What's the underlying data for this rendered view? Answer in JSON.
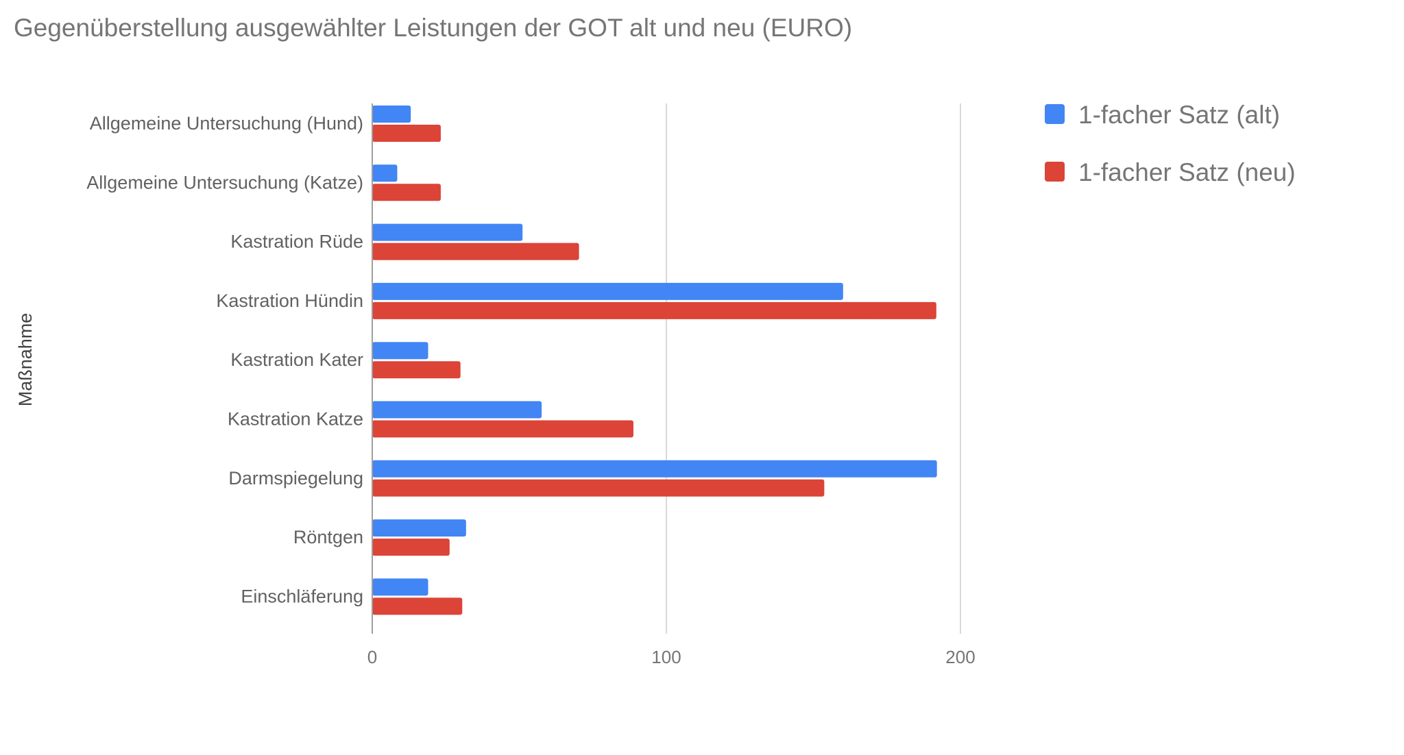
{
  "chart_data": {
    "type": "bar",
    "orientation": "horizontal",
    "title": "Gegenüberstellung ausgewählter Leistungen der GOT alt und neu (EURO)",
    "xlabel": "",
    "ylabel": "Maßnahme",
    "xlim": [
      0,
      200
    ],
    "xticks": [
      "0",
      "100",
      "200"
    ],
    "grid": true,
    "legend": "right",
    "categories": [
      "Allgemeine Untersuchung (Hund)",
      "Allgemeine Untersuchung (Katze)",
      "Kastration Rüde",
      "Kastration Hündin",
      "Kastration Kater",
      "Kastration Katze",
      "Darmspiegelung",
      "Röntgen",
      "Einschläferung"
    ],
    "series": [
      {
        "name": "1-facher Satz (alt)",
        "color": "#4285f4",
        "values": [
          13.1,
          8.5,
          51.1,
          160.1,
          19.0,
          57.6,
          192.0,
          31.9,
          19.0
        ]
      },
      {
        "name": "1-facher Satz (neu)",
        "color": "#db4437",
        "values": [
          23.3,
          23.3,
          70.3,
          191.8,
          30.0,
          88.8,
          153.7,
          26.3,
          30.6
        ]
      }
    ]
  }
}
